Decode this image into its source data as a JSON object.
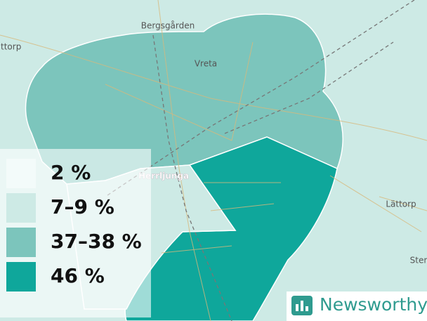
{
  "map": {
    "places": [
      "ättorp",
      "Bergsgården",
      "Vreta",
      "Herrljunga",
      "Lättorp",
      "Ster"
    ]
  },
  "legend": {
    "items": [
      {
        "label": "2 %",
        "color": "#f3fbfa"
      },
      {
        "label": "7–9 %",
        "color": "#cdeae5"
      },
      {
        "label": "37–38 %",
        "color": "#7cc5bc"
      },
      {
        "label": "46 %",
        "color": "#0fa79b"
      }
    ]
  },
  "logo": {
    "text": "Newsworthy"
  }
}
